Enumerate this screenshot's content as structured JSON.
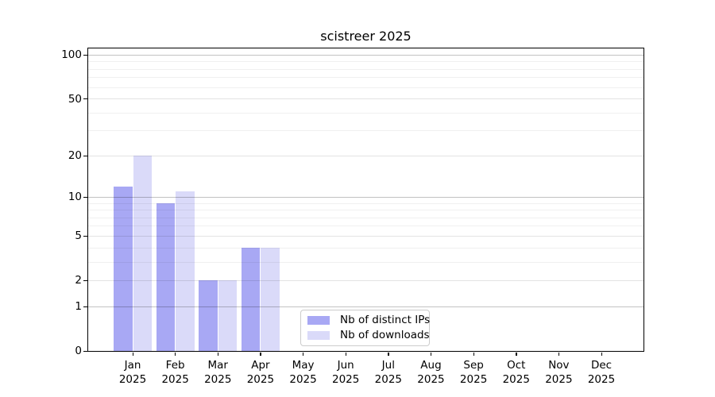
{
  "chart_data": {
    "type": "bar",
    "title": "scistreer 2025",
    "categories": [
      "Jan 2025",
      "Feb 2025",
      "Mar 2025",
      "Apr 2025",
      "May 2025",
      "Jun 2025",
      "Jul 2025",
      "Aug 2025",
      "Sep 2025",
      "Oct 2025",
      "Nov 2025",
      "Dec 2025"
    ],
    "series": [
      {
        "name": "Nb of distinct IPs",
        "color": "#a8a8f4",
        "values": [
          12,
          9,
          2,
          4,
          0,
          0,
          0,
          0,
          0,
          0,
          0,
          0
        ]
      },
      {
        "name": "Nb of downloads",
        "color": "#dadaf9",
        "values": [
          20,
          11,
          2,
          4,
          0,
          0,
          0,
          0,
          0,
          0,
          0,
          0
        ]
      }
    ],
    "yscale": "log1p",
    "ylim": [
      0,
      111
    ],
    "yticks": [
      0,
      1,
      2,
      5,
      10,
      20,
      50,
      100
    ],
    "grid": {
      "on": true,
      "decade_lines": [
        1,
        10,
        100
      ],
      "mid_lines": [
        2,
        5,
        20,
        50
      ],
      "minor_lines": [
        3,
        4,
        6,
        7,
        8,
        9,
        30,
        40,
        60,
        70,
        80,
        90
      ],
      "decade_color": "rgba(0,0,0,0.24)",
      "mid_color": "rgba(0,0,0,0.11)",
      "minor_color": "rgba(0,0,0,0.06)"
    },
    "legend": {
      "position": "lower center",
      "entries": [
        "Nb of distinct IPs",
        "Nb of downloads"
      ]
    }
  }
}
